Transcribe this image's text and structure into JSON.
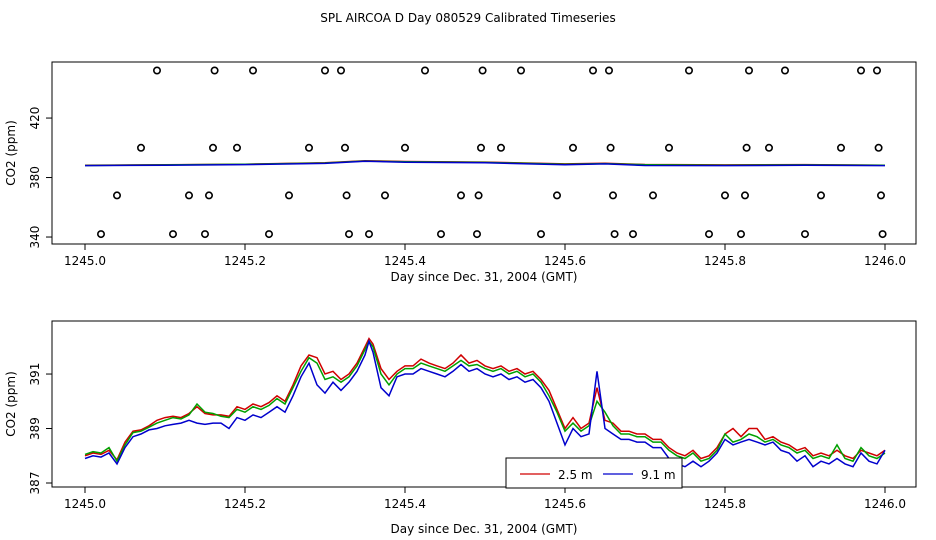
{
  "figure_title": "SPL AIRCOA D  Day 080529  Calibrated Timeseries",
  "chart_data": [
    {
      "type": "line",
      "title": "",
      "xlabel": "Day since Dec. 31, 2004 (GMT)",
      "ylabel": "CO2 (ppm)",
      "xlim": [
        1245.0,
        1246.0
      ],
      "ylim": [
        338,
        455
      ],
      "xticks": [
        "1245.0",
        "1245.2",
        "1245.4",
        "1245.6",
        "1245.8",
        "1246.0"
      ],
      "yticks": [
        "340",
        "380",
        "420"
      ],
      "grid": false,
      "series": [
        {
          "color": "#d00000",
          "x": [
            1245.0,
            1245.1,
            1245.2,
            1245.3,
            1245.35,
            1245.4,
            1245.5,
            1245.6,
            1245.65,
            1245.7,
            1245.8,
            1245.9,
            1246.0
          ],
          "values": [
            388.2,
            388.6,
            389.0,
            390.0,
            391.3,
            390.8,
            390.4,
            389.2,
            389.6,
            388.8,
            388.5,
            388.7,
            388.3
          ]
        },
        {
          "color": "#00a000",
          "x": [
            1245.0,
            1245.1,
            1245.2,
            1245.3,
            1245.35,
            1245.4,
            1245.5,
            1245.6,
            1245.65,
            1245.7,
            1245.8,
            1245.9,
            1246.0
          ],
          "values": [
            388.1,
            388.5,
            388.9,
            389.8,
            391.1,
            390.6,
            390.2,
            389.0,
            389.4,
            388.6,
            388.3,
            388.5,
            388.2
          ]
        },
        {
          "color": "#0000cc",
          "x": [
            1245.0,
            1245.1,
            1245.2,
            1245.3,
            1245.35,
            1245.4,
            1245.5,
            1245.6,
            1245.65,
            1245.7,
            1245.8,
            1245.9,
            1246.0
          ],
          "values": [
            388.0,
            388.3,
            388.7,
            389.5,
            390.9,
            390.3,
            389.9,
            388.6,
            389.2,
            388.1,
            388.0,
            388.2,
            388.0
          ]
        }
      ],
      "calibration_points": {
        "x": [
          1245.02,
          1245.04,
          1245.07,
          1245.09,
          1245.11,
          1245.13,
          1245.15,
          1245.155,
          1245.16,
          1245.162,
          1245.19,
          1245.21,
          1245.23,
          1245.255,
          1245.28,
          1245.3,
          1245.32,
          1245.325,
          1245.327,
          1245.33,
          1245.355,
          1245.375,
          1245.4,
          1245.425,
          1245.445,
          1245.47,
          1245.49,
          1245.492,
          1245.495,
          1245.497,
          1245.52,
          1245.545,
          1245.57,
          1245.59,
          1245.61,
          1245.635,
          1245.655,
          1245.657,
          1245.66,
          1245.662,
          1245.685,
          1245.71,
          1245.73,
          1245.755,
          1245.78,
          1245.8,
          1245.82,
          1245.825,
          1245.827,
          1245.83,
          1245.855,
          1245.875,
          1245.9,
          1245.92,
          1245.945,
          1245.97,
          1245.99,
          1245.992,
          1245.995,
          1245.997
        ],
        "values": [
          342,
          368,
          400,
          452,
          342,
          368,
          342,
          368,
          400,
          452,
          400,
          452,
          342,
          368,
          400,
          452,
          452,
          400,
          368,
          342,
          342,
          368,
          400,
          452,
          342,
          368,
          342,
          368,
          400,
          452,
          400,
          452,
          342,
          368,
          400,
          452,
          452,
          400,
          368,
          342,
          342,
          368,
          400,
          452,
          342,
          368,
          342,
          368,
          400,
          452,
          400,
          452,
          342,
          368,
          400,
          452,
          452,
          400,
          368,
          342
        ]
      }
    },
    {
      "type": "line",
      "title": "",
      "xlabel": "Day since Dec. 31, 2004 (GMT)",
      "ylabel": "CO2 (ppm)",
      "xlim": [
        1245.0,
        1246.0
      ],
      "ylim": [
        387.0,
        392.8
      ],
      "xticks": [
        "1245.0",
        "1245.2",
        "1245.4",
        "1245.6",
        "1245.8",
        "1246.0"
      ],
      "yticks": [
        "387",
        "389",
        "391"
      ],
      "grid": false,
      "legend": {
        "position": "bottom-right",
        "entries": [
          "2.5 m",
          "9.1 m"
        ],
        "colors": [
          "#d00000",
          "#0000cc"
        ]
      },
      "series": [
        {
          "name": "2.5 m",
          "color": "#d00000",
          "x": [
            1245.0,
            1245.01,
            1245.02,
            1245.03,
            1245.04,
            1245.05,
            1245.06,
            1245.07,
            1245.08,
            1245.09,
            1245.1,
            1245.11,
            1245.12,
            1245.13,
            1245.14,
            1245.15,
            1245.16,
            1245.17,
            1245.18,
            1245.19,
            1245.2,
            1245.21,
            1245.22,
            1245.23,
            1245.24,
            1245.25,
            1245.26,
            1245.27,
            1245.28,
            1245.29,
            1245.3,
            1245.31,
            1245.32,
            1245.33,
            1245.34,
            1245.35,
            1245.355,
            1245.36,
            1245.37,
            1245.38,
            1245.39,
            1245.4,
            1245.41,
            1245.42,
            1245.43,
            1245.44,
            1245.45,
            1245.46,
            1245.47,
            1245.48,
            1245.49,
            1245.5,
            1245.51,
            1245.52,
            1245.53,
            1245.54,
            1245.55,
            1245.56,
            1245.57,
            1245.58,
            1245.59,
            1245.6,
            1245.61,
            1245.62,
            1245.63,
            1245.64,
            1245.65,
            1245.66,
            1245.67,
            1245.68,
            1245.69,
            1245.7,
            1245.71,
            1245.72,
            1245.73,
            1245.74,
            1245.75,
            1245.76,
            1245.77,
            1245.78,
            1245.79,
            1245.8,
            1245.81,
            1245.82,
            1245.83,
            1245.84,
            1245.85,
            1245.86,
            1245.87,
            1245.88,
            1245.89,
            1245.9,
            1245.91,
            1245.92,
            1245.93,
            1245.94,
            1245.95,
            1245.96,
            1245.97,
            1245.98,
            1245.99,
            1246.0
          ],
          "values": [
            388.0,
            388.1,
            388.05,
            388.2,
            387.85,
            388.5,
            388.9,
            388.95,
            389.1,
            389.3,
            389.4,
            389.45,
            389.4,
            389.55,
            389.8,
            389.55,
            389.5,
            389.5,
            389.45,
            389.8,
            389.7,
            389.9,
            389.8,
            389.95,
            390.2,
            390.0,
            390.6,
            391.3,
            391.7,
            391.6,
            391.0,
            391.1,
            390.8,
            391.0,
            391.4,
            392.0,
            392.3,
            392.1,
            391.2,
            390.8,
            391.1,
            391.3,
            391.3,
            391.55,
            391.4,
            391.3,
            391.2,
            391.4,
            391.7,
            391.4,
            391.5,
            391.3,
            391.2,
            391.3,
            391.1,
            391.2,
            391.0,
            391.1,
            390.8,
            390.4,
            389.7,
            389.0,
            389.4,
            389.0,
            389.2,
            390.5,
            389.3,
            389.2,
            388.9,
            388.9,
            388.8,
            388.8,
            388.6,
            388.6,
            388.3,
            388.1,
            388.0,
            388.2,
            387.9,
            388.0,
            388.3,
            388.8,
            389.0,
            388.7,
            389.0,
            389.0,
            388.6,
            388.7,
            388.5,
            388.4,
            388.2,
            388.3,
            388.0,
            388.1,
            388.0,
            388.2,
            388.0,
            387.9,
            388.2,
            388.1,
            388.0,
            388.2
          ]
        },
        {
          "name": "",
          "color": "#00a000",
          "x": [
            1245.0,
            1245.01,
            1245.02,
            1245.03,
            1245.04,
            1245.05,
            1245.06,
            1245.07,
            1245.08,
            1245.09,
            1245.1,
            1245.11,
            1245.12,
            1245.13,
            1245.14,
            1245.15,
            1245.16,
            1245.17,
            1245.18,
            1245.19,
            1245.2,
            1245.21,
            1245.22,
            1245.23,
            1245.24,
            1245.25,
            1245.26,
            1245.27,
            1245.28,
            1245.29,
            1245.3,
            1245.31,
            1245.32,
            1245.33,
            1245.34,
            1245.35,
            1245.355,
            1245.36,
            1245.37,
            1245.38,
            1245.39,
            1245.4,
            1245.41,
            1245.42,
            1245.43,
            1245.44,
            1245.45,
            1245.46,
            1245.47,
            1245.48,
            1245.49,
            1245.5,
            1245.51,
            1245.52,
            1245.53,
            1245.54,
            1245.55,
            1245.56,
            1245.57,
            1245.58,
            1245.59,
            1245.6,
            1245.61,
            1245.62,
            1245.63,
            1245.64,
            1245.65,
            1245.66,
            1245.67,
            1245.68,
            1245.69,
            1245.7,
            1245.71,
            1245.72,
            1245.73,
            1245.74,
            1245.75,
            1245.76,
            1245.77,
            1245.78,
            1245.79,
            1245.8,
            1245.81,
            1245.82,
            1245.83,
            1245.84,
            1245.85,
            1245.86,
            1245.87,
            1245.88,
            1245.89,
            1245.9,
            1245.91,
            1245.92,
            1245.93,
            1245.94,
            1245.95,
            1245.96,
            1245.97,
            1245.98,
            1245.99,
            1246.0
          ],
          "values": [
            388.05,
            388.15,
            388.1,
            388.3,
            387.8,
            388.4,
            388.85,
            388.9,
            389.05,
            389.2,
            389.3,
            389.4,
            389.35,
            389.5,
            389.9,
            389.6,
            389.55,
            389.45,
            389.4,
            389.7,
            389.6,
            389.8,
            389.7,
            389.85,
            390.1,
            389.9,
            390.5,
            391.1,
            391.6,
            391.4,
            390.8,
            390.9,
            390.7,
            390.9,
            391.3,
            391.9,
            392.2,
            392.0,
            391.0,
            390.6,
            391.0,
            391.2,
            391.2,
            391.4,
            391.3,
            391.2,
            391.1,
            391.3,
            391.5,
            391.3,
            391.35,
            391.2,
            391.1,
            391.2,
            391.0,
            391.1,
            390.9,
            391.0,
            390.7,
            390.2,
            389.6,
            388.9,
            389.2,
            388.9,
            389.1,
            390.0,
            389.6,
            389.1,
            388.8,
            388.8,
            388.7,
            388.7,
            388.5,
            388.5,
            388.2,
            388.0,
            387.9,
            388.1,
            387.8,
            387.9,
            388.2,
            388.8,
            388.5,
            388.6,
            388.8,
            388.7,
            388.5,
            388.6,
            388.4,
            388.3,
            388.1,
            388.2,
            387.9,
            388.0,
            387.9,
            388.4,
            387.9,
            387.8,
            388.3,
            388.0,
            387.9,
            388.1
          ]
        },
        {
          "name": "9.1 m",
          "color": "#0000cc",
          "x": [
            1245.0,
            1245.01,
            1245.02,
            1245.03,
            1245.04,
            1245.05,
            1245.06,
            1245.07,
            1245.08,
            1245.09,
            1245.1,
            1245.11,
            1245.12,
            1245.13,
            1245.14,
            1245.15,
            1245.16,
            1245.17,
            1245.18,
            1245.19,
            1245.2,
            1245.21,
            1245.22,
            1245.23,
            1245.24,
            1245.25,
            1245.26,
            1245.27,
            1245.28,
            1245.29,
            1245.3,
            1245.31,
            1245.32,
            1245.33,
            1245.34,
            1245.35,
            1245.355,
            1245.36,
            1245.37,
            1245.38,
            1245.39,
            1245.4,
            1245.41,
            1245.42,
            1245.43,
            1245.44,
            1245.45,
            1245.46,
            1245.47,
            1245.48,
            1245.49,
            1245.5,
            1245.51,
            1245.52,
            1245.53,
            1245.54,
            1245.55,
            1245.56,
            1245.57,
            1245.58,
            1245.59,
            1245.6,
            1245.61,
            1245.62,
            1245.63,
            1245.64,
            1245.65,
            1245.66,
            1245.67,
            1245.68,
            1245.69,
            1245.7,
            1245.71,
            1245.72,
            1245.73,
            1245.74,
            1245.75,
            1245.76,
            1245.77,
            1245.78,
            1245.79,
            1245.8,
            1245.81,
            1245.82,
            1245.83,
            1245.84,
            1245.85,
            1245.86,
            1245.87,
            1245.88,
            1245.89,
            1245.9,
            1245.91,
            1245.92,
            1245.93,
            1245.94,
            1245.95,
            1245.96,
            1245.97,
            1245.98,
            1245.99,
            1246.0
          ],
          "values": [
            387.9,
            388.0,
            387.95,
            388.1,
            387.7,
            388.3,
            388.7,
            388.8,
            388.95,
            389.0,
            389.1,
            389.15,
            389.2,
            389.3,
            389.2,
            389.15,
            389.2,
            389.2,
            389.0,
            389.4,
            389.3,
            389.5,
            389.4,
            389.6,
            389.8,
            389.6,
            390.2,
            390.9,
            391.4,
            390.6,
            390.3,
            390.7,
            390.4,
            390.7,
            391.1,
            391.7,
            392.2,
            391.8,
            390.5,
            390.2,
            390.9,
            391.0,
            391.0,
            391.2,
            391.1,
            391.0,
            390.9,
            391.1,
            391.35,
            391.1,
            391.2,
            391.0,
            390.9,
            391.0,
            390.8,
            390.9,
            390.7,
            390.8,
            390.5,
            390.0,
            389.2,
            388.4,
            389.0,
            388.7,
            388.8,
            391.1,
            389.0,
            388.8,
            388.6,
            388.6,
            388.5,
            388.5,
            388.3,
            388.3,
            387.9,
            387.7,
            387.6,
            387.8,
            387.6,
            387.8,
            388.1,
            388.6,
            388.4,
            388.5,
            388.6,
            388.5,
            388.4,
            388.5,
            388.2,
            388.1,
            387.8,
            388.0,
            387.6,
            387.8,
            387.7,
            387.9,
            387.7,
            387.6,
            388.1,
            387.8,
            387.7,
            388.2
          ]
        }
      ]
    }
  ]
}
